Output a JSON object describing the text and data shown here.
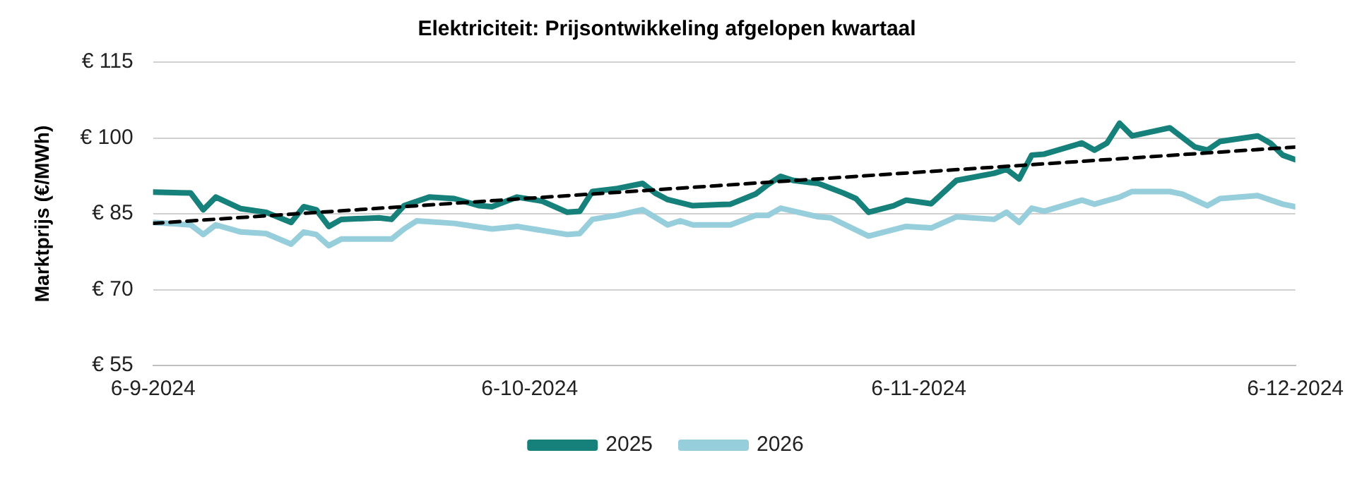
{
  "chart_data": {
    "type": "line",
    "title": "Elektriciteit: Prijsontwikkeling afgelopen kwartaal",
    "ylabel": "Marktprijs (€/MWh)",
    "xlim": [
      "2024-09-06",
      "2024-12-06"
    ],
    "xticks": [
      {
        "value": "2024-09-06",
        "label": "6-9-2024"
      },
      {
        "value": "2024-10-06",
        "label": "6-10-2024"
      },
      {
        "value": "2024-11-06",
        "label": "6-11-2024"
      },
      {
        "value": "2024-12-06",
        "label": "6-12-2024"
      }
    ],
    "ylim": [
      55,
      115
    ],
    "yticks": [
      {
        "value": 55,
        "label": "€ 55"
      },
      {
        "value": 70,
        "label": "€ 70"
      },
      {
        "value": 85,
        "label": "€ 85"
      },
      {
        "value": 100,
        "label": "€ 100"
      },
      {
        "value": 115,
        "label": "€ 115"
      }
    ],
    "grid": "y",
    "legend": "bottom",
    "marker": "none",
    "line_style": "solid",
    "series": [
      {
        "name": "2025",
        "color": "#16807a",
        "x": [
          "2024-09-06",
          "2024-09-09",
          "2024-09-10",
          "2024-09-11",
          "2024-09-13",
          "2024-09-15",
          "2024-09-17",
          "2024-09-18",
          "2024-09-19",
          "2024-09-20",
          "2024-09-21",
          "2024-09-24",
          "2024-09-25",
          "2024-09-26",
          "2024-09-28",
          "2024-09-30",
          "2024-10-02",
          "2024-10-03",
          "2024-10-05",
          "2024-10-07",
          "2024-10-09",
          "2024-10-10",
          "2024-10-11",
          "2024-10-13",
          "2024-10-15",
          "2024-10-16",
          "2024-10-17",
          "2024-10-19",
          "2024-10-22",
          "2024-10-24",
          "2024-10-25",
          "2024-10-26",
          "2024-10-27",
          "2024-10-29",
          "2024-10-31",
          "2024-11-01",
          "2024-11-02",
          "2024-11-04",
          "2024-11-05",
          "2024-11-07",
          "2024-11-09",
          "2024-11-12",
          "2024-11-13",
          "2024-11-14",
          "2024-11-15",
          "2024-11-16",
          "2024-11-19",
          "2024-11-20",
          "2024-11-21",
          "2024-11-22",
          "2024-11-23",
          "2024-11-26",
          "2024-11-28",
          "2024-11-29",
          "2024-11-30",
          "2024-12-03",
          "2024-12-04",
          "2024-12-05",
          "2024-12-06"
        ],
        "values": [
          89.3,
          89.1,
          85.8,
          88.3,
          86,
          85.3,
          83.3,
          86.4,
          85.8,
          82.5,
          83.9,
          84.2,
          83.9,
          86.6,
          88.3,
          88,
          86.6,
          86.4,
          88.3,
          87.5,
          85.3,
          85.5,
          89.4,
          90,
          91,
          89.1,
          87.8,
          86.6,
          86.9,
          88.9,
          90.8,
          92.4,
          91.6,
          91,
          89.1,
          88,
          85.3,
          86.6,
          87.7,
          87,
          91.6,
          93,
          93.8,
          91.9,
          96.6,
          96.8,
          99,
          97.6,
          99,
          102.9,
          100.4,
          102,
          98.2,
          97.6,
          99.3,
          100.4,
          99,
          96.6,
          95.7
        ]
      },
      {
        "name": "2026",
        "color": "#97cedb",
        "x": [
          "2024-09-06",
          "2024-09-09",
          "2024-09-10",
          "2024-09-11",
          "2024-09-13",
          "2024-09-15",
          "2024-09-17",
          "2024-09-18",
          "2024-09-19",
          "2024-09-20",
          "2024-09-21",
          "2024-09-25",
          "2024-09-26",
          "2024-09-27",
          "2024-09-30",
          "2024-10-03",
          "2024-10-05",
          "2024-10-07",
          "2024-10-09",
          "2024-10-10",
          "2024-10-11",
          "2024-10-13",
          "2024-10-15",
          "2024-10-17",
          "2024-10-18",
          "2024-10-19",
          "2024-10-22",
          "2024-10-24",
          "2024-10-25",
          "2024-10-26",
          "2024-10-29",
          "2024-10-30",
          "2024-11-02",
          "2024-11-05",
          "2024-11-07",
          "2024-11-09",
          "2024-11-12",
          "2024-11-13",
          "2024-11-14",
          "2024-11-15",
          "2024-11-16",
          "2024-11-19",
          "2024-11-20",
          "2024-11-22",
          "2024-11-23",
          "2024-11-26",
          "2024-11-27",
          "2024-11-29",
          "2024-11-30",
          "2024-12-03",
          "2024-12-05",
          "2024-12-06"
        ],
        "values": [
          83.3,
          82.8,
          80.9,
          82.8,
          81.4,
          81.1,
          79,
          81.4,
          80.9,
          78.7,
          80,
          80,
          82,
          83.6,
          83.1,
          82,
          82.5,
          81.7,
          80.9,
          81.1,
          83.9,
          84.7,
          85.8,
          82.8,
          83.6,
          82.8,
          82.8,
          84.7,
          84.7,
          86.1,
          84.4,
          84.2,
          80.6,
          82.5,
          82.2,
          84.4,
          83.9,
          85.3,
          83.3,
          86.1,
          85.5,
          87.7,
          86.9,
          88.3,
          89.4,
          89.4,
          88.9,
          86.6,
          88,
          88.6,
          86.9,
          86.4
        ]
      },
      {
        "color": "#000000",
        "line_style": "dashed",
        "x": [
          "2024-09-06",
          "2024-12-06"
        ],
        "values": [
          83.1,
          98.2
        ]
      }
    ]
  }
}
